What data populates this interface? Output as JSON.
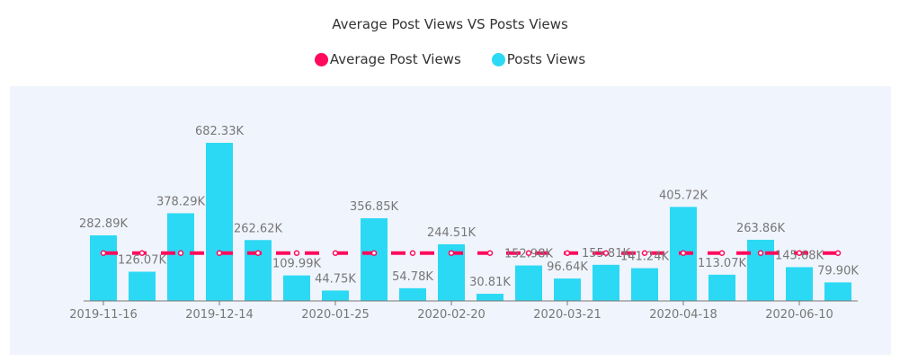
{
  "chart_data": {
    "type": "bar",
    "title": "Average Post Views VS Posts Views",
    "legend_position": "top",
    "grid": false,
    "categories": [
      "2019-11-16",
      "",
      "",
      "2019-12-14",
      "",
      "",
      "2020-01-25",
      "",
      "",
      "2020-02-20",
      "",
      "",
      "2020-03-21",
      "",
      "",
      "2020-04-18",
      "",
      "",
      "2020-06-10",
      ""
    ],
    "series": [
      {
        "name": "Average Post Views",
        "type": "line",
        "style": "dashed",
        "color": "#ff0a5c",
        "values": [
          206.44,
          206.44,
          206.44,
          206.44,
          206.44,
          206.44,
          206.44,
          206.44,
          206.44,
          206.44,
          206.44,
          206.44,
          206.44,
          206.44,
          206.44,
          206.44,
          206.44,
          206.44,
          206.44,
          206.44
        ]
      },
      {
        "name": "Posts Views",
        "type": "bar",
        "color": "#2bd9f4",
        "values": [
          282.89,
          126.07,
          378.29,
          682.33,
          262.62,
          109.99,
          44.75,
          356.85,
          54.78,
          244.51,
          30.81,
          152.98,
          96.64,
          155.81,
          141.24,
          405.72,
          113.07,
          263.86,
          145.68,
          79.9
        ],
        "labels": [
          "282.89K",
          "126.07K",
          "378.29K",
          "682.33K",
          "262.62K",
          "109.99K",
          "44.75K",
          "356.85K",
          "54.78K",
          "244.51K",
          "30.81K",
          "152.98K",
          "96.64K",
          "155.81K",
          "141.24K",
          "405.72K",
          "113.07K",
          "263.86K",
          "145.68K",
          "79.90K"
        ]
      }
    ],
    "ylim": [
      0,
      682.33
    ],
    "y_unit": "K"
  }
}
